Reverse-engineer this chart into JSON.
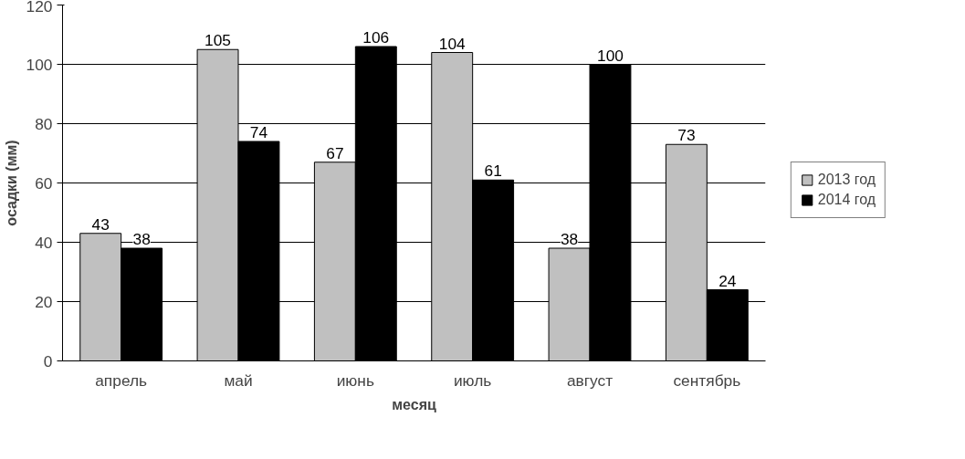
{
  "chart_data": {
    "type": "bar",
    "xlabel": "месяц",
    "ylabel": "осадки (мм)",
    "categories": [
      "апрель",
      "май",
      "июнь",
      "июль",
      "август",
      "сентябрь"
    ],
    "series": [
      {
        "name": "2013 год",
        "color": "#c0c0c0",
        "values": [
          43,
          105,
          67,
          104,
          38,
          73
        ]
      },
      {
        "name": "2014 год",
        "color": "#000000",
        "values": [
          38,
          74,
          106,
          61,
          100,
          24
        ]
      }
    ],
    "ylim": [
      0,
      120
    ],
    "yticks": [
      0,
      20,
      40,
      60,
      80,
      100,
      120
    ],
    "grid": "y",
    "legend": "right",
    "data_labels": true
  }
}
